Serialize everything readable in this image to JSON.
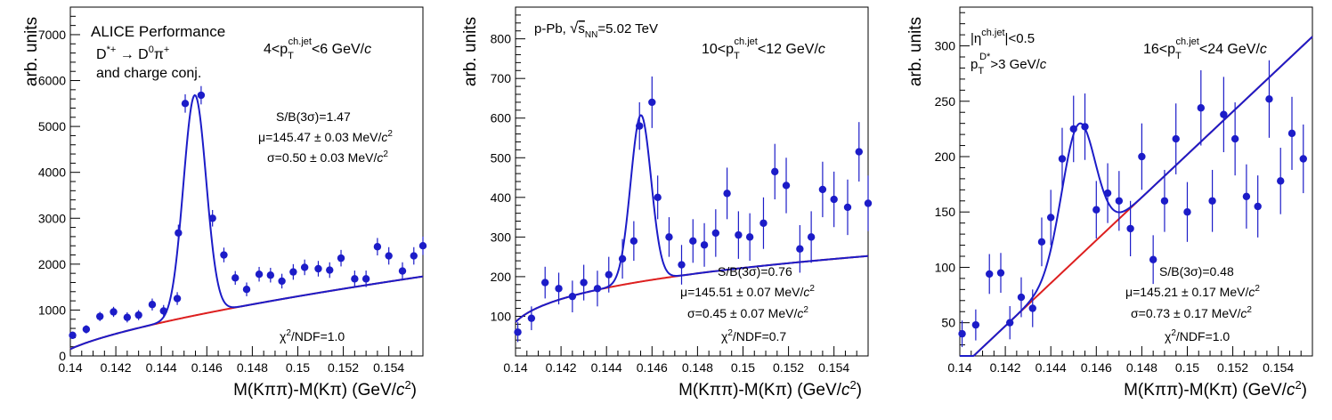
{
  "chart_data": [
    {
      "type": "scatter",
      "xlabel": "M(Kππ)-M(Kπ) (GeV/c²)",
      "ylabel": "arb. units",
      "xlim": [
        0.14,
        0.1555
      ],
      "ylim": [
        0,
        7600
      ],
      "xticks": [
        0.14,
        0.142,
        0.144,
        0.146,
        0.148,
        0.15,
        0.152,
        0.154
      ],
      "xtick_labels": [
        "0.14",
        "0.142",
        "0.144",
        "0.146",
        "0.148",
        "0.15",
        "0.152",
        "0.154"
      ],
      "yticks": [
        0,
        1000,
        2000,
        3000,
        4000,
        5000,
        6000,
        7000
      ],
      "ytick_labels": [
        "0",
        "1000",
        "2000",
        "3000",
        "4000",
        "5000",
        "6000",
        "7000"
      ],
      "labels_left": [
        "ALICE Performance",
        "D*+ → D0π+",
        "and charge conj."
      ],
      "pt_label": "4<pT ch.jet<6 GeV/c",
      "stats": [
        "S/B(3σ)=1.47",
        "μ=145.47 ± 0.03 MeV/c²",
        "σ=0.50 ± 0.03 MeV/c²"
      ],
      "chi2": "χ²/NDF=1.0",
      "fit": {
        "peak_mean": 0.14547,
        "peak_sigma": 0.0005,
        "peak_amp": 4800,
        "bkg_A": 1700,
        "bkg_B": 0.68
      },
      "points": [
        {
          "x": 0.1401,
          "y": 450,
          "e": 80
        },
        {
          "x": 0.1407,
          "y": 580,
          "e": 90
        },
        {
          "x": 0.1413,
          "y": 860,
          "e": 100
        },
        {
          "x": 0.1419,
          "y": 960,
          "e": 110
        },
        {
          "x": 0.1425,
          "y": 840,
          "e": 110
        },
        {
          "x": 0.143,
          "y": 890,
          "e": 110
        },
        {
          "x": 0.1436,
          "y": 1120,
          "e": 130
        },
        {
          "x": 0.1441,
          "y": 980,
          "e": 130
        },
        {
          "x": 0.1447,
          "y": 1250,
          "e": 140
        },
        {
          "x": 0.14475,
          "y": 2680,
          "e": 180
        },
        {
          "x": 0.14505,
          "y": 5500,
          "e": 200
        },
        {
          "x": 0.14575,
          "y": 5680,
          "e": 200
        },
        {
          "x": 0.14625,
          "y": 3000,
          "e": 180
        },
        {
          "x": 0.14675,
          "y": 2200,
          "e": 160
        },
        {
          "x": 0.14725,
          "y": 1700,
          "e": 150
        },
        {
          "x": 0.14775,
          "y": 1450,
          "e": 150
        },
        {
          "x": 0.1483,
          "y": 1780,
          "e": 160
        },
        {
          "x": 0.1488,
          "y": 1760,
          "e": 160
        },
        {
          "x": 0.1493,
          "y": 1630,
          "e": 160
        },
        {
          "x": 0.1498,
          "y": 1830,
          "e": 170
        },
        {
          "x": 0.1503,
          "y": 1930,
          "e": 170
        },
        {
          "x": 0.1509,
          "y": 1900,
          "e": 170
        },
        {
          "x": 0.1514,
          "y": 1870,
          "e": 170
        },
        {
          "x": 0.1519,
          "y": 2130,
          "e": 180
        },
        {
          "x": 0.1525,
          "y": 1680,
          "e": 180
        },
        {
          "x": 0.153,
          "y": 1680,
          "e": 180
        },
        {
          "x": 0.1535,
          "y": 2380,
          "e": 190
        },
        {
          "x": 0.154,
          "y": 2180,
          "e": 190
        },
        {
          "x": 0.1546,
          "y": 1850,
          "e": 190
        },
        {
          "x": 0.1551,
          "y": 2180,
          "e": 190
        },
        {
          "x": 0.1555,
          "y": 2400,
          "e": 200
        }
      ]
    },
    {
      "type": "scatter",
      "xlabel": "M(Kππ)-M(Kπ) (GeV/c²)",
      "ylabel": "arb. units",
      "xlim": [
        0.14,
        0.1555
      ],
      "ylim": [
        0,
        880
      ],
      "xticks": [
        0.14,
        0.142,
        0.144,
        0.146,
        0.148,
        0.15,
        0.152,
        0.154
      ],
      "xtick_labels": [
        "0.14",
        "0.142",
        "0.144",
        "0.146",
        "0.148",
        "0.15",
        "0.152",
        "0.154"
      ],
      "yticks": [
        100,
        200,
        300,
        400,
        500,
        600,
        700,
        800
      ],
      "ytick_labels": [
        "100",
        "200",
        "300",
        "400",
        "500",
        "600",
        "700",
        "800"
      ],
      "system_label": "p-Pb, √sNN=5.02 TeV",
      "pt_label": "10<pT ch.jet<12 GeV/c",
      "stats": [
        "S/B(3σ)=0.76",
        "μ=145.51 ± 0.07 MeV/c²",
        "σ=0.45 ± 0.07 MeV/c²"
      ],
      "chi2": "χ²/NDF=0.7",
      "fit": {
        "peak_mean": 0.14551,
        "peak_sigma": 0.00045,
        "peak_amp": 420,
        "bkg_A": 250,
        "bkg_B": 0.3
      },
      "points": [
        {
          "x": 0.1401,
          "y": 60,
          "e": 25
        },
        {
          "x": 0.1407,
          "y": 95,
          "e": 30
        },
        {
          "x": 0.1413,
          "y": 185,
          "e": 40
        },
        {
          "x": 0.1419,
          "y": 170,
          "e": 40
        },
        {
          "x": 0.1425,
          "y": 150,
          "e": 40
        },
        {
          "x": 0.143,
          "y": 185,
          "e": 45
        },
        {
          "x": 0.1436,
          "y": 170,
          "e": 45
        },
        {
          "x": 0.1441,
          "y": 205,
          "e": 45
        },
        {
          "x": 0.1447,
          "y": 245,
          "e": 50
        },
        {
          "x": 0.1452,
          "y": 290,
          "e": 50
        },
        {
          "x": 0.14545,
          "y": 580,
          "e": 60
        },
        {
          "x": 0.146,
          "y": 640,
          "e": 65
        },
        {
          "x": 0.14625,
          "y": 400,
          "e": 55
        },
        {
          "x": 0.14675,
          "y": 300,
          "e": 50
        },
        {
          "x": 0.1473,
          "y": 230,
          "e": 50
        },
        {
          "x": 0.1478,
          "y": 290,
          "e": 55
        },
        {
          "x": 0.1483,
          "y": 280,
          "e": 55
        },
        {
          "x": 0.1488,
          "y": 310,
          "e": 60
        },
        {
          "x": 0.1493,
          "y": 410,
          "e": 65
        },
        {
          "x": 0.1498,
          "y": 305,
          "e": 60
        },
        {
          "x": 0.1503,
          "y": 300,
          "e": 60
        },
        {
          "x": 0.1509,
          "y": 335,
          "e": 65
        },
        {
          "x": 0.1514,
          "y": 465,
          "e": 70
        },
        {
          "x": 0.1519,
          "y": 430,
          "e": 70
        },
        {
          "x": 0.1525,
          "y": 270,
          "e": 60
        },
        {
          "x": 0.153,
          "y": 300,
          "e": 65
        },
        {
          "x": 0.1535,
          "y": 420,
          "e": 70
        },
        {
          "x": 0.154,
          "y": 395,
          "e": 70
        },
        {
          "x": 0.1546,
          "y": 375,
          "e": 70
        },
        {
          "x": 0.1551,
          "y": 515,
          "e": 75
        },
        {
          "x": 0.1555,
          "y": 385,
          "e": 70
        }
      ]
    },
    {
      "type": "scatter",
      "xlabel": "M(Kππ)-M(Kπ) (GeV/c²)",
      "ylabel": "arb. units",
      "xlim": [
        0.14,
        0.1555
      ],
      "ylim": [
        20,
        335
      ],
      "xticks": [
        0.14,
        0.142,
        0.144,
        0.146,
        0.148,
        0.15,
        0.152,
        0.154
      ],
      "xtick_labels": [
        "0.14",
        "0.142",
        "0.144",
        "0.146",
        "0.148",
        "0.15",
        "0.152",
        "0.154"
      ],
      "yticks": [
        50,
        100,
        150,
        200,
        250,
        300
      ],
      "ytick_labels": [
        "50",
        "100",
        "150",
        "200",
        "250",
        "300"
      ],
      "eta_label": "|η ch.jet|<0.5",
      "ptd_label": "pT D*>3 GeV/c",
      "pt_label": "16<pT ch.jet<24 GeV/c",
      "stats": [
        "S/B(3σ)=0.48",
        "μ=145.21 ± 0.17 MeV/c²",
        "σ=0.73 ± 0.17 MeV/c²"
      ],
      "chi2": "χ²/NDF=1.0",
      "fit": {
        "peak_mean": 0.14521,
        "peak_sigma": 0.00073,
        "peak_amp": 120,
        "bkg_A": 300,
        "bkg_B": 1.0
      },
      "points": [
        {
          "x": 0.1401,
          "y": 40,
          "e": 12
        },
        {
          "x": 0.1407,
          "y": 48,
          "e": 14
        },
        {
          "x": 0.1413,
          "y": 94,
          "e": 18
        },
        {
          "x": 0.1418,
          "y": 95,
          "e": 18
        },
        {
          "x": 0.1422,
          "y": 50,
          "e": 15
        },
        {
          "x": 0.1427,
          "y": 73,
          "e": 18
        },
        {
          "x": 0.1432,
          "y": 63,
          "e": 17
        },
        {
          "x": 0.1436,
          "y": 123,
          "e": 22
        },
        {
          "x": 0.144,
          "y": 145,
          "e": 25
        },
        {
          "x": 0.1445,
          "y": 198,
          "e": 28
        },
        {
          "x": 0.145,
          "y": 225,
          "e": 30
        },
        {
          "x": 0.1455,
          "y": 227,
          "e": 30
        },
        {
          "x": 0.146,
          "y": 152,
          "e": 26
        },
        {
          "x": 0.1465,
          "y": 167,
          "e": 27
        },
        {
          "x": 0.147,
          "y": 160,
          "e": 27
        },
        {
          "x": 0.1475,
          "y": 135,
          "e": 25
        },
        {
          "x": 0.148,
          "y": 200,
          "e": 30
        },
        {
          "x": 0.1485,
          "y": 107,
          "e": 22
        },
        {
          "x": 0.149,
          "y": 160,
          "e": 28
        },
        {
          "x": 0.1495,
          "y": 216,
          "e": 32
        },
        {
          "x": 0.15,
          "y": 150,
          "e": 27
        },
        {
          "x": 0.1506,
          "y": 244,
          "e": 34
        },
        {
          "x": 0.1511,
          "y": 160,
          "e": 28
        },
        {
          "x": 0.1516,
          "y": 238,
          "e": 34
        },
        {
          "x": 0.1521,
          "y": 216,
          "e": 33
        },
        {
          "x": 0.1526,
          "y": 164,
          "e": 29
        },
        {
          "x": 0.1531,
          "y": 155,
          "e": 28
        },
        {
          "x": 0.1536,
          "y": 252,
          "e": 35
        },
        {
          "x": 0.1541,
          "y": 178,
          "e": 30
        },
        {
          "x": 0.1546,
          "y": 221,
          "e": 33
        },
        {
          "x": 0.1551,
          "y": 198,
          "e": 31
        }
      ]
    }
  ]
}
